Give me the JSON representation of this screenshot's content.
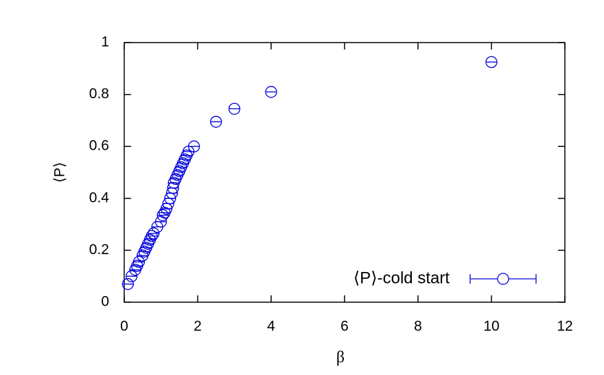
{
  "chart_data": {
    "type": "scatter",
    "x_label": "β",
    "y_label": "⟨P⟩",
    "series": [
      {
        "name": "⟨P⟩-cold start",
        "color": "#0000dd",
        "x": [
          0.1,
          0.2,
          0.3,
          0.35,
          0.4,
          0.5,
          0.55,
          0.6,
          0.65,
          0.7,
          0.75,
          0.8,
          0.9,
          1.0,
          1.05,
          1.1,
          1.15,
          1.2,
          1.25,
          1.3,
          1.33,
          1.35,
          1.4,
          1.45,
          1.5,
          1.55,
          1.6,
          1.65,
          1.7,
          1.75,
          1.9,
          2.5,
          3.0,
          4.0,
          10
        ],
        "values": [
          0.07,
          0.1,
          0.125,
          0.14,
          0.155,
          0.18,
          0.195,
          0.21,
          0.225,
          0.24,
          0.255,
          0.265,
          0.29,
          0.31,
          0.335,
          0.345,
          0.36,
          0.38,
          0.4,
          0.42,
          0.44,
          0.46,
          0.475,
          0.49,
          0.505,
          0.52,
          0.535,
          0.55,
          0.565,
          0.58,
          0.6,
          0.695,
          0.745,
          0.81,
          0.925
        ]
      }
    ],
    "xlim": [
      0,
      12
    ],
    "xticks": [
      0,
      2,
      4,
      6,
      8,
      10,
      12
    ],
    "ylim": [
      0,
      1
    ],
    "yticks": [
      0,
      0.2,
      0.4,
      0.6,
      0.8,
      1
    ],
    "legend": "bottom-right"
  }
}
